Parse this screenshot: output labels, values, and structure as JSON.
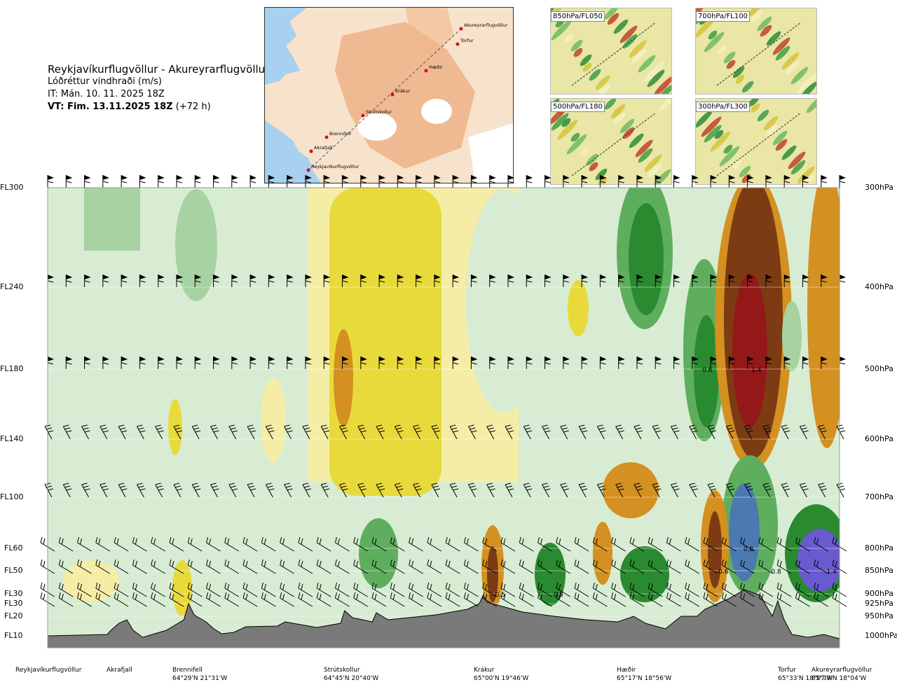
{
  "header": {
    "route": "Reykjavíkurflugvöllur - Akureyrarflugvöllur",
    "parameter": "Lóðréttur vindhraði (m/s)",
    "issue_time": "IT: Mán. 10. 11. 2025 18Z",
    "valid_time_bold": "VT: Fim. 13.11.2025 18Z",
    "valid_time_lead": "(+72 h)"
  },
  "map": {
    "waypoints": [
      "Akureyrarflugvöllur",
      "Torfur",
      "Hæðir",
      "Krákur",
      "Strútskollur",
      "Brennifell",
      "Akrafjall",
      "Reykjavíkurflugvöllur"
    ],
    "colors": {
      "sea": "#a8d0ef",
      "land_low": "#f7e2cc",
      "land_high": "#eba878",
      "ice": "#ffffff",
      "route": "#d01020"
    }
  },
  "thumbnails": [
    {
      "label": "850hPa/FL050"
    },
    {
      "label": "700hPa/FL100"
    },
    {
      "label": "500hPa/FL180"
    },
    {
      "label": "300hPa/FL300"
    }
  ],
  "chart_data": {
    "type": "heatmap",
    "title": "Lóðréttur vindhraði (m/s)",
    "y_flight_levels": [
      {
        "label": "FL300",
        "hpa": 300
      },
      {
        "label": "FL240",
        "hpa": 400
      },
      {
        "label": "FL180",
        "hpa": 500
      },
      {
        "label": "FL140",
        "hpa": 600
      },
      {
        "label": "FL100",
        "hpa": 700
      },
      {
        "label": "FL60",
        "hpa": 800
      },
      {
        "label": "FL50",
        "hpa": 850
      },
      {
        "label": "FL30",
        "hpa": 900
      },
      {
        "label": "FL30",
        "hpa": 925
      },
      {
        "label": "FL20",
        "hpa": 950
      },
      {
        "label": "FL10",
        "hpa": 1000
      }
    ],
    "y_pressure_labels": [
      "300hPa",
      "400hPa",
      "500hPa",
      "600hPa",
      "700hPa",
      "800hPa",
      "850hPa",
      "900hPa",
      "925hPa",
      "950hPa",
      "1000hPa"
    ],
    "x_stations": [
      {
        "name": "Reykjavíkurflugvöllur",
        "coord": "",
        "pos": 0.0
      },
      {
        "name": "Akrafjall",
        "coord": "",
        "pos": 0.092
      },
      {
        "name": "Brennifell",
        "coord": "64°29'N 21°31'W",
        "pos": 0.195
      },
      {
        "name": "Strútskollur",
        "coord": "64°45'N 20°40'W",
        "pos": 0.39
      },
      {
        "name": "Krákur",
        "coord": "65°00'N 19°46'W",
        "pos": 0.58
      },
      {
        "name": "Hæðir",
        "coord": "65°17'N 18°56'W",
        "pos": 0.77
      },
      {
        "name": "Torfur",
        "coord": "65°33'N 18°07'W",
        "pos": 0.945
      },
      {
        "name": "Akureyrarflugvöllur",
        "coord": "65°39'N 18°04'W",
        "pos": 1.0
      }
    ],
    "contour_labels": [
      {
        "text": "0.6",
        "pos": 0.833,
        "hpa": 500
      },
      {
        "text": "1.4",
        "pos": 0.895,
        "hpa": 500
      },
      {
        "text": "0.8",
        "pos": 0.885,
        "hpa": 800
      },
      {
        "text": "0.8",
        "pos": 0.92,
        "hpa": 850
      },
      {
        "text": "-0.6",
        "pos": 0.852,
        "hpa": 850
      },
      {
        "text": "1.4",
        "pos": 0.99,
        "hpa": 850
      },
      {
        "text": "-0.5",
        "pos": 0.57,
        "hpa": 900
      },
      {
        "text": "0.5",
        "pos": 0.645,
        "hpa": 900
      }
    ],
    "color_scale": {
      "strong_sink": "#7c3b12",
      "sink": "#d49020",
      "weak_sink": "#e8da3a",
      "very_weak_sink": "#f5eda5",
      "neutral": "#f6fbf0",
      "very_weak_rise": "#d7ecd2",
      "weak_rise": "#a7d2a2",
      "rise": "#5eae5e",
      "strong_rise": "#2a8a30",
      "very_strong_rise": "#4a7ab0",
      "extreme_rise": "#6a5ad0"
    }
  }
}
